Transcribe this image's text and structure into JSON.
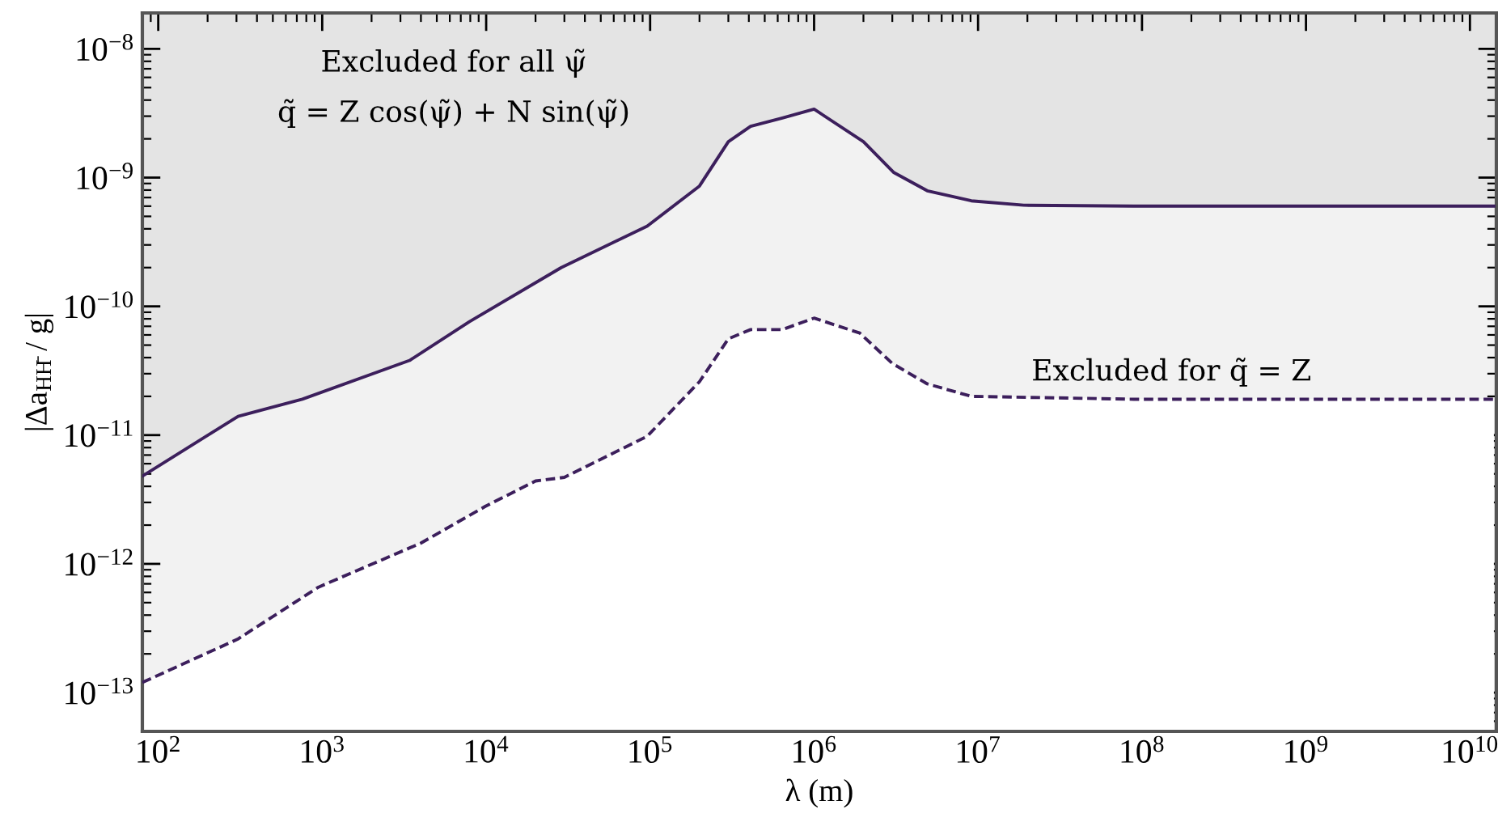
{
  "chart_data": {
    "type": "area",
    "xlabel": "λ (m)",
    "ylabel": "|Δa$_{HH̄}$ / g|",
    "annotations": [
      "Excluded for all ψ̃",
      "q̃ = Z cos(ψ̃) + N sin(ψ̃)",
      "Excluded for q̃ = Z"
    ],
    "log": "xy",
    "grid": false,
    "xlim": [
      80,
      14500000000.0
    ],
    "ylim": [
      5e-14,
      1.9e-08
    ],
    "xticks": [
      {
        "value": 100,
        "label": "10$^{2}$"
      },
      {
        "value": 1000,
        "label": "10$^{3}$"
      },
      {
        "value": 10000,
        "label": "10$^{4}$"
      },
      {
        "value": 100000,
        "label": "10$^{5}$"
      },
      {
        "value": 1000000,
        "label": "10$^{6}$"
      },
      {
        "value": 10000000,
        "label": "10$^{7}$"
      },
      {
        "value": 100000000,
        "label": "10$^{8}$"
      },
      {
        "value": 1000000000,
        "label": "10$^{9}$"
      },
      {
        "value": 10000000000,
        "label": "10$^{10}$"
      }
    ],
    "yticks": [
      {
        "value": 1e-13,
        "label": "10$^{−13}$"
      },
      {
        "value": 1e-12,
        "label": "10$^{−12}$"
      },
      {
        "value": 1e-11,
        "label": "10$^{−11}$"
      },
      {
        "value": 1e-10,
        "label": "10$^{−10}$"
      },
      {
        "value": 1e-09,
        "label": "10$^{−9}$"
      },
      {
        "value": 1e-08,
        "label": "10$^{−8}$"
      }
    ],
    "series": [
      {
        "color": "#3c1f5c",
        "line_style": "solid",
        "x": [
          80,
          307,
          757,
          3410,
          7900,
          28700,
          96000,
          200000,
          300000,
          410000,
          640000,
          1000000,
          2000000,
          3050000,
          4900000,
          9100000,
          19000000,
          89000000,
          14000000000
        ],
        "values": [
          4.8e-12,
          1.4e-11,
          1.9e-11,
          3.8e-11,
          7.6e-11,
          2e-10,
          4.2e-10,
          8.6e-10,
          1.9e-09,
          2.5e-09,
          2.9e-09,
          3.4e-09,
          1.9e-09,
          1.1e-09,
          7.9e-10,
          6.6e-10,
          6.1e-10,
          6e-10,
          6e-10
        ]
      },
      {
        "color": "#3c1f5c",
        "line_style": "dashed",
        "x": [
          80,
          305,
          950,
          4000,
          9900,
          20000,
          30000,
          96000,
          200000,
          300000,
          410000,
          640000,
          1000000,
          1900000,
          3000000,
          4900000,
          9100000,
          89000000,
          14000000000
        ],
        "values": [
          1.2e-13,
          2.6e-13,
          6.6e-13,
          1.45e-12,
          2.8e-12,
          4.4e-12,
          4.7e-12,
          9.8e-12,
          2.6e-11,
          5.6e-11,
          6.6e-11,
          6.6e-11,
          8.1e-11,
          6.2e-11,
          3.6e-11,
          2.5e-11,
          2e-11,
          1.9e-11,
          1.9e-11
        ]
      }
    ]
  }
}
